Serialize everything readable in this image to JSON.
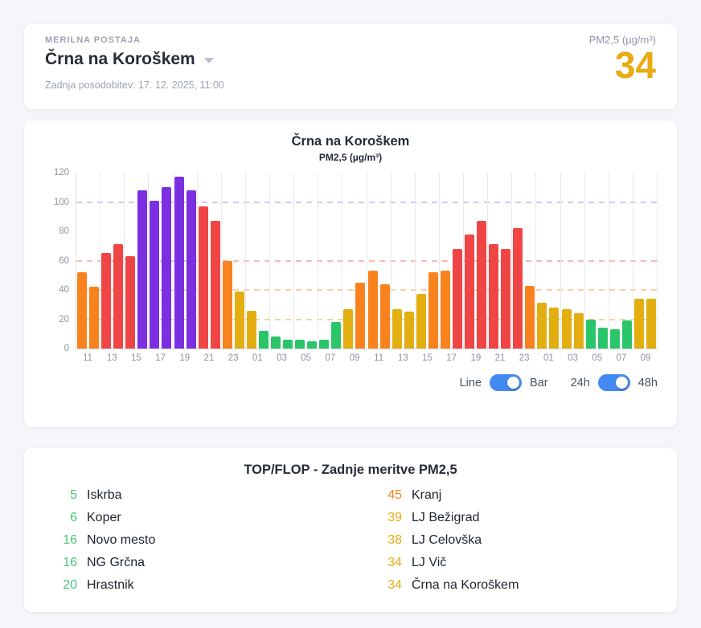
{
  "header": {
    "section_label": "MERILNA POSTAJA",
    "station_name": "Črna na Koroškem",
    "last_update": "Zadnja posodobitev: 17. 12. 2025, 11:00",
    "metric_label": "PM2,5 (µg/m³)",
    "current_value": "34",
    "current_value_color": "#e8ab10"
  },
  "chart": {
    "title": "Črna na Koroškem",
    "subtitle": "PM2,5 (µg/m³)"
  },
  "chart_data": {
    "type": "bar",
    "title": "Črna na Koroškem",
    "ylabel": "PM2,5 (µg/m³)",
    "ylim": [
      0,
      120
    ],
    "yticks": [
      0,
      20,
      40,
      60,
      80,
      100,
      120
    ],
    "hours": [
      "11",
      "12",
      "13",
      "14",
      "15",
      "16",
      "17",
      "18",
      "19",
      "20",
      "21",
      "22",
      "23",
      "00",
      "01",
      "02",
      "03",
      "04",
      "05",
      "06",
      "07",
      "08",
      "09",
      "10",
      "11",
      "12",
      "13",
      "14",
      "15",
      "16",
      "17",
      "18",
      "19",
      "20",
      "21",
      "22",
      "23",
      "00",
      "01",
      "02",
      "03",
      "04",
      "05",
      "06",
      "07",
      "08",
      "09",
      "10"
    ],
    "values": [
      52,
      42,
      65,
      71,
      63,
      108,
      101,
      110,
      117,
      108,
      97,
      87,
      60,
      39,
      26,
      12,
      8,
      6,
      6,
      5,
      6,
      18,
      27,
      45,
      53,
      44,
      27,
      25,
      37,
      52,
      53,
      68,
      78,
      87,
      71,
      68,
      82,
      43,
      31,
      28,
      27,
      24,
      20,
      14,
      13,
      19,
      34,
      34
    ],
    "x_tick_labels": [
      "11",
      "13",
      "15",
      "17",
      "19",
      "21",
      "23",
      "01",
      "03",
      "05",
      "07",
      "09",
      "11",
      "13",
      "15",
      "17",
      "19",
      "21",
      "23",
      "01",
      "03",
      "05",
      "07",
      "09"
    ],
    "threshold_lines": [
      {
        "value": 20,
        "color": "#ecd79c"
      },
      {
        "value": 40,
        "color": "#f7d0a8"
      },
      {
        "value": 60,
        "color": "#f6baba"
      },
      {
        "value": 100,
        "color": "#d9c4f4"
      }
    ],
    "palette": {
      "green": "#2ac569",
      "yellow": "#e2ae10",
      "orange": "#f8821e",
      "red": "#ef4545",
      "purple": "#7b2fe0"
    },
    "color_scale": [
      {
        "max": 20,
        "color": "green"
      },
      {
        "max": 40,
        "color": "yellow"
      },
      {
        "max": 60,
        "color": "orange"
      },
      {
        "max": 100,
        "color": "red"
      },
      {
        "max": 1000,
        "color": "purple"
      }
    ],
    "grid": "vertical lines every 2 hours, dashed colored threshold lines",
    "legend": "none"
  },
  "controls": {
    "line_label": "Line",
    "bar_label": "Bar",
    "range_24_label": "24h",
    "range_48_label": "48h",
    "toggle_color": "#4389f2",
    "chart_mode": "Bar",
    "range_mode": "48h"
  },
  "topflop": {
    "title": "TOP/FLOP - Zadnje meritve PM2,5",
    "left": [
      {
        "value": "5",
        "name": "Iskrba",
        "color": "#42c878"
      },
      {
        "value": "6",
        "name": "Koper",
        "color": "#42c878"
      },
      {
        "value": "16",
        "name": "Novo mesto",
        "color": "#42c878"
      },
      {
        "value": "16",
        "name": "NG Grčna",
        "color": "#42c878"
      },
      {
        "value": "20",
        "name": "Hrastnik",
        "color": "#42c878"
      }
    ],
    "right": [
      {
        "value": "45",
        "name": "Kranj",
        "color": "#f8821e"
      },
      {
        "value": "39",
        "name": "LJ Bežigrad",
        "color": "#e8ab10"
      },
      {
        "value": "38",
        "name": "LJ Celovška",
        "color": "#e8ab10"
      },
      {
        "value": "34",
        "name": "LJ Vič",
        "color": "#e8ab10"
      },
      {
        "value": "34",
        "name": "Črna na Koroškem",
        "color": "#e8ab10"
      }
    ]
  }
}
